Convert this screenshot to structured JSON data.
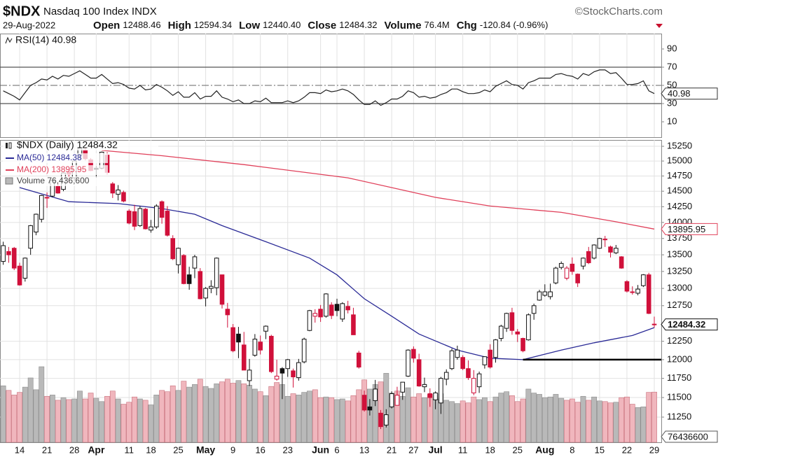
{
  "chart_data": {
    "type": "candlestick",
    "header": {
      "symbol": "$NDX",
      "name": "Nasdaq 100 Index INDX",
      "source": "©StockCharts.com",
      "date": "29-Aug-2022",
      "stats": [
        {
          "label": "Open",
          "value": "12488.46"
        },
        {
          "label": "High",
          "value": "12594.34"
        },
        {
          "label": "Low",
          "value": "12440.40"
        },
        {
          "label": "Close",
          "value": "12484.32"
        },
        {
          "label": "Volume",
          "value": "76.4M"
        },
        {
          "label": "Chg",
          "value": "-120.84 (-0.96%)"
        }
      ]
    },
    "title": "$NDX (Daily) 12484.32",
    "xlim": [
      -0.59,
      120.28
    ],
    "xticks": [
      {
        "value": 3,
        "label": "14"
      },
      {
        "value": 8,
        "label": "21"
      },
      {
        "value": 13,
        "label": "28"
      },
      {
        "value": 17,
        "label": "Apr"
      },
      {
        "value": 23,
        "label": "11"
      },
      {
        "value": 27,
        "label": "18"
      },
      {
        "value": 32,
        "label": "25"
      },
      {
        "value": 37,
        "label": "May"
      },
      {
        "value": 42,
        "label": "9"
      },
      {
        "value": 47,
        "label": "16"
      },
      {
        "value": 52,
        "label": "23"
      },
      {
        "value": 58,
        "label": "Jun"
      },
      {
        "value": 61,
        "label": "6"
      },
      {
        "value": 66,
        "label": "13"
      },
      {
        "value": 71,
        "label": "21"
      },
      {
        "value": 75,
        "label": "27"
      },
      {
        "value": 79,
        "label": "Jul"
      },
      {
        "value": 84,
        "label": "11"
      },
      {
        "value": 89,
        "label": "18"
      },
      {
        "value": 94,
        "label": "25"
      },
      {
        "value": 99,
        "label": "Aug"
      },
      {
        "value": 104,
        "label": "8"
      },
      {
        "value": 109,
        "label": "15"
      },
      {
        "value": 114,
        "label": "22"
      },
      {
        "value": 119,
        "label": "29"
      }
    ],
    "ylim": [
      10936,
      15359
    ],
    "log": true,
    "grid": true,
    "yticks": [
      11250,
      11500,
      11750,
      12000,
      12250,
      12750,
      13000,
      13250,
      13500,
      13750,
      14000,
      14250,
      14500,
      14750,
      15000,
      15250
    ],
    "up_color": "#111111",
    "down_color": "#d0103a",
    "candles": [
      [
        13400,
        13700,
        13350,
        13640
      ],
      [
        13550,
        13620,
        13380,
        13500
      ],
      [
        13600,
        13620,
        13270,
        13300
      ],
      [
        13330,
        13380,
        13040,
        13050
      ],
      [
        13150,
        13460,
        13100,
        13450
      ],
      [
        13600,
        13960,
        13500,
        13950
      ],
      [
        13850,
        14140,
        13800,
        14130
      ],
      [
        14050,
        14440,
        14000,
        14430
      ],
      [
        14400,
        14480,
        14230,
        14400
      ],
      [
        14420,
        14700,
        14400,
        14680
      ],
      [
        14580,
        14650,
        14460,
        14470
      ],
      [
        14530,
        14810,
        14500,
        14800
      ],
      [
        14820,
        14850,
        14640,
        14780
      ],
      [
        14720,
        15010,
        14660,
        15000
      ],
      [
        15100,
        15260,
        15040,
        15220
      ],
      [
        15180,
        15220,
        15010,
        15040
      ],
      [
        15020,
        15050,
        14830,
        14840
      ],
      [
        14880,
        14920,
        14720,
        14860
      ],
      [
        14880,
        15160,
        14860,
        15150
      ],
      [
        15100,
        15150,
        14770,
        14810
      ],
      [
        14620,
        14650,
        14390,
        14470
      ],
      [
        14450,
        14600,
        14350,
        14520
      ],
      [
        14480,
        14510,
        14320,
        14340
      ],
      [
        14180,
        14210,
        13970,
        13990
      ],
      [
        14170,
        14280,
        13880,
        13940
      ],
      [
        13950,
        14260,
        13930,
        14220
      ],
      [
        14210,
        14230,
        13890,
        13900
      ],
      [
        13880,
        14040,
        13840,
        13930
      ],
      [
        13930,
        14290,
        13900,
        14260
      ],
      [
        14330,
        14350,
        13980,
        14080
      ],
      [
        14180,
        14260,
        13780,
        13800
      ],
      [
        13750,
        13800,
        13420,
        13440
      ],
      [
        13350,
        13610,
        13220,
        13600
      ],
      [
        13490,
        13510,
        13060,
        13070
      ],
      [
        13200,
        13320,
        12980,
        13070
      ],
      [
        13300,
        13500,
        13150,
        13470
      ],
      [
        13250,
        13300,
        12840,
        12850
      ],
      [
        12860,
        13020,
        12740,
        13000
      ],
      [
        13000,
        13120,
        12930,
        13030
      ],
      [
        13010,
        13460,
        12900,
        13450
      ],
      [
        13200,
        13200,
        12710,
        12770
      ],
      [
        12700,
        12790,
        12440,
        12620
      ],
      [
        12440,
        12490,
        12100,
        12120
      ],
      [
        12350,
        12450,
        12020,
        12240
      ],
      [
        12200,
        12380,
        11860,
        11860
      ],
      [
        11720,
        12010,
        11650,
        11860
      ],
      [
        12060,
        12350,
        12040,
        12280
      ],
      [
        12240,
        12330,
        12070,
        12130
      ],
      [
        12390,
        12470,
        12280,
        12460
      ],
      [
        12320,
        12340,
        11820,
        11840
      ],
      [
        11740,
        12000,
        11720,
        11780
      ],
      [
        11880,
        11900,
        11480,
        11820
      ],
      [
        11880,
        12010,
        11770,
        12000
      ],
      [
        11850,
        11880,
        11630,
        11770
      ],
      [
        11760,
        12010,
        11720,
        11960
      ],
      [
        11970,
        12300,
        11950,
        12280
      ],
      [
        12400,
        12690,
        12390,
        12680
      ],
      [
        12600,
        12700,
        12510,
        12640
      ],
      [
        12700,
        12760,
        12520,
        12590
      ],
      [
        12600,
        12930,
        12580,
        12920
      ],
      [
        12760,
        12800,
        12560,
        12610
      ],
      [
        12770,
        12850,
        12600,
        12680
      ],
      [
        12560,
        12800,
        12520,
        12780
      ],
      [
        12740,
        12820,
        12640,
        12690
      ],
      [
        12620,
        12720,
        12340,
        12340
      ],
      [
        12090,
        12120,
        11880,
        11900
      ],
      [
        11530,
        11590,
        11320,
        11340
      ],
      [
        11380,
        11480,
        11270,
        11340
      ],
      [
        11460,
        11730,
        11390,
        11610
      ],
      [
        11300,
        11340,
        11100,
        11130
      ],
      [
        11150,
        11350,
        11120,
        11280
      ],
      [
        11380,
        11580,
        11360,
        11550
      ],
      [
        11400,
        11640,
        11400,
        11530
      ],
      [
        11570,
        11700,
        11470,
        11700
      ],
      [
        11780,
        12140,
        11770,
        12130
      ],
      [
        12140,
        12180,
        11960,
        12020
      ],
      [
        12000,
        12080,
        11640,
        11650
      ],
      [
        11640,
        11760,
        11570,
        11670
      ],
      [
        11550,
        11620,
        11380,
        11500
      ],
      [
        11470,
        11580,
        11350,
        11560
      ],
      [
        11430,
        11770,
        11290,
        11750
      ],
      [
        11740,
        11870,
        11660,
        11830
      ],
      [
        11880,
        12150,
        11860,
        12120
      ],
      [
        12030,
        12190,
        12000,
        12130
      ],
      [
        12030,
        12060,
        11860,
        11880
      ],
      [
        11880,
        11990,
        11730,
        11760
      ],
      [
        11560,
        11860,
        11530,
        11750
      ],
      [
        11640,
        11840,
        11560,
        11810
      ],
      [
        11930,
        12040,
        11880,
        12040
      ],
      [
        12130,
        12210,
        11880,
        11900
      ],
      [
        12030,
        12280,
        11960,
        12270
      ],
      [
        12290,
        12480,
        12250,
        12460
      ],
      [
        12430,
        12650,
        12380,
        12640
      ],
      [
        12650,
        12720,
        12340,
        12400
      ],
      [
        12380,
        12420,
        12240,
        12350
      ],
      [
        12290,
        12300,
        12100,
        12120
      ],
      [
        12270,
        12640,
        12260,
        12620
      ],
      [
        12640,
        12780,
        12550,
        12750
      ],
      [
        12830,
        12980,
        12820,
        12950
      ],
      [
        12900,
        13060,
        12880,
        12950
      ],
      [
        12880,
        13070,
        12840,
        12950
      ],
      [
        13080,
        13320,
        13060,
        13300
      ],
      [
        13310,
        13400,
        13280,
        13370
      ],
      [
        13150,
        13330,
        13120,
        13300
      ],
      [
        13360,
        13460,
        13200,
        13250
      ],
      [
        13210,
        13220,
        13020,
        13080
      ],
      [
        13330,
        13460,
        13280,
        13450
      ],
      [
        13550,
        13620,
        13360,
        13380
      ],
      [
        13450,
        13660,
        13430,
        13650
      ],
      [
        13600,
        13760,
        13590,
        13750
      ],
      [
        13730,
        13790,
        13620,
        13740
      ],
      [
        13620,
        13640,
        13460,
        13540
      ],
      [
        13530,
        13650,
        13510,
        13600
      ],
      [
        13470,
        13480,
        13290,
        13300
      ],
      [
        13100,
        13120,
        12940,
        12960
      ],
      [
        12950,
        13030,
        12910,
        12950
      ],
      [
        12930,
        13050,
        12900,
        12990
      ],
      [
        13040,
        13210,
        13020,
        13200
      ],
      [
        13200,
        13230,
        12630,
        12640
      ],
      [
        12488.46,
        12594.34,
        12440.4,
        12484.32
      ]
    ],
    "ma": [
      {
        "name": "MA(50) 12484.38",
        "color": "#2a2a96",
        "x": [
          3,
          12,
          21,
          29,
          35,
          40,
          48,
          56,
          61,
          66,
          71,
          76,
          83,
          89,
          95,
          102,
          108,
          115,
          119
        ],
        "values": [
          14560,
          14330,
          14300,
          14220,
          14130,
          13950,
          13700,
          13450,
          13200,
          12850,
          12600,
          12350,
          12130,
          12020,
          12000,
          12130,
          12230,
          12330,
          12440
        ]
      },
      {
        "name": "MA(200) 13895.95",
        "color": "#e0405a",
        "x": [
          18,
          29,
          44,
          63,
          79,
          89,
          102,
          112,
          119
        ],
        "values": [
          15180,
          15090,
          14940,
          14720,
          14400,
          14260,
          14160,
          14010,
          13895.95
        ]
      }
    ],
    "volume": {
      "name": "Volume 76,436,600",
      "ylim": [
        0,
        460000000
      ],
      "up_color": "#b9b9b9",
      "down_color": "#f0b6bd",
      "values": [
        86000000.0,
        79000000.0,
        72000000.0,
        76000000.0,
        84000000.0,
        98000000.0,
        80000000.0,
        115000000.0,
        70000000.0,
        72000000.0,
        64000000.0,
        68000000.0,
        65000000.0,
        66000000.0,
        78000000.0,
        66000000.0,
        75000000.0,
        67000000.0,
        62000000.0,
        70000000.0,
        78000000.0,
        66000000.0,
        58000000.0,
        61000000.0,
        69000000.0,
        66000000.0,
        64000000.0,
        57000000.0,
        72000000.0,
        79000000.0,
        77000000.0,
        86000000.0,
        79000000.0,
        93000000.0,
        84000000.0,
        88000000.0,
        96000000.0,
        85000000.0,
        82000000.0,
        89000000.0,
        92000000.0,
        96000000.0,
        90000000.0,
        94000000.0,
        89000000.0,
        87000000.0,
        81000000.0,
        77000000.0,
        71000000.0,
        85000000.0,
        91000000.0,
        88000000.0,
        70000000.0,
        74000000.0,
        72000000.0,
        76000000.0,
        78000000.0,
        80000000.0,
        68000000.0,
        69000000.0,
        68000000.0,
        65000000.0,
        66000000.0,
        63000000.0,
        71000000.0,
        80000000.0,
        95000000.0,
        81000000.0,
        88000000.0,
        92000000.0,
        105000000.0,
        75000000.0,
        78000000.0,
        70000000.0,
        83000000.0,
        69000000.0,
        74000000.0,
        68000000.0,
        73000000.0,
        66000000.0,
        74000000.0,
        64000000.0,
        62000000.0,
        59000000.0,
        63000000.0,
        60000000.0,
        69000000.0,
        65000000.0,
        68000000.0,
        62000000.0,
        69000000.0,
        75000000.0,
        77000000.0,
        71000000.0,
        62000000.0,
        66000000.0,
        81000000.0,
        75000000.0,
        73000000.0,
        68000000.0,
        69000000.0,
        73000000.0,
        67000000.0,
        64000000.0,
        66000000.0,
        61000000.0,
        70000000.0,
        64000000.0,
        69000000.0,
        63000000.0,
        62000000.0,
        60000000.0,
        61000000.0,
        68000000.0,
        69000000.0,
        58000000.0,
        53000000.0,
        54000000.0,
        76000000.0,
        76436600
      ]
    },
    "rsi": {
      "name": "RSI(14) 40.98",
      "color": "#222222",
      "ylim": [
        -6.9,
        106.9
      ],
      "yticks": [
        10,
        30,
        50,
        70,
        90
      ],
      "bands": [
        30,
        70
      ],
      "midline": 50,
      "values": [
        44,
        41,
        38,
        34,
        42,
        50,
        53,
        57,
        56,
        60,
        57,
        61,
        60,
        63,
        66,
        62,
        58,
        58,
        62,
        57,
        52,
        53,
        51,
        47,
        46,
        50,
        45,
        46,
        51,
        48,
        44,
        39,
        43,
        37,
        37,
        42,
        35,
        38,
        38,
        44,
        37,
        35,
        32,
        34,
        30,
        30,
        33,
        32,
        36,
        31,
        31,
        31,
        33,
        31,
        33,
        37,
        42,
        42,
        41,
        45,
        43,
        44,
        46,
        44,
        40,
        34,
        29,
        29,
        33,
        28,
        31,
        35,
        35,
        38,
        44,
        42,
        37,
        38,
        36,
        37,
        40,
        42,
        46,
        46,
        43,
        41,
        41,
        42,
        45,
        43,
        49,
        52,
        55,
        51,
        50,
        46,
        53,
        55,
        58,
        58,
        58,
        62,
        63,
        61,
        60,
        57,
        63,
        61,
        65,
        67,
        67,
        63,
        64,
        58,
        51,
        51,
        52,
        55,
        44,
        40.98
      ]
    },
    "annotation": {
      "value": 12000,
      "from": 95
    }
  }
}
